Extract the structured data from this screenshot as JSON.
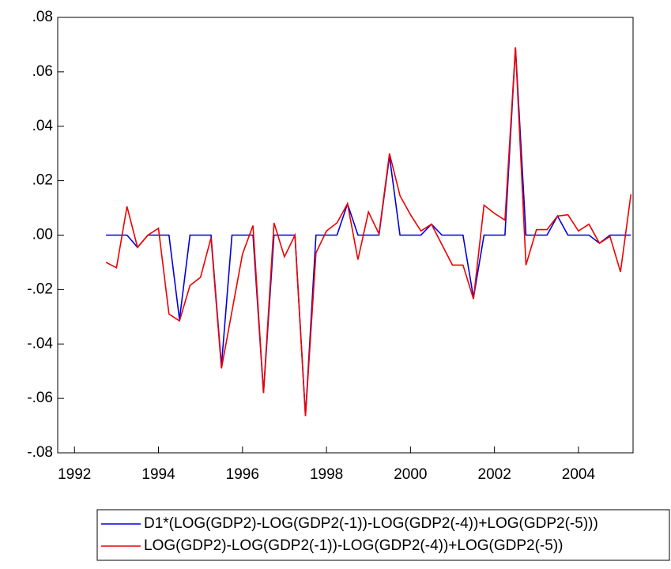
{
  "chart_data": {
    "type": "line",
    "x": [
      1992.75,
      1993,
      1993.25,
      1993.5,
      1993.75,
      1994,
      1994.25,
      1994.5,
      1994.75,
      1995,
      1995.25,
      1995.5,
      1995.75,
      1996,
      1996.25,
      1996.5,
      1996.75,
      1997,
      1997.25,
      1997.5,
      1997.75,
      1998,
      1998.25,
      1998.5,
      1998.75,
      1999,
      1999.25,
      1999.5,
      1999.75,
      2000,
      2000.25,
      2000.5,
      2000.75,
      2001,
      2001.25,
      2001.5,
      2001.75,
      2002,
      2002.25,
      2002.5,
      2002.75,
      2003,
      2003.25,
      2003.5,
      2003.75,
      2004,
      2004.25,
      2004.5,
      2004.75,
      2005,
      2005.25
    ],
    "series": [
      {
        "name": "D1*(LOG(GDP2)-LOG(GDP2(-1))-LOG(GDP2(-4))+LOG(GDP2(-5)))",
        "color": "#0000dd",
        "values": [
          0,
          0,
          0,
          -0.0045,
          0,
          0,
          0,
          -0.031,
          0,
          0,
          0,
          -0.048,
          0,
          0,
          0,
          -0.058,
          0,
          0,
          0,
          -0.0665,
          0,
          0,
          0,
          0.0115,
          0,
          0,
          0,
          0.029,
          0,
          0,
          0,
          0.004,
          0,
          0,
          0,
          -0.023,
          0,
          0,
          0,
          0.069,
          0,
          0,
          0,
          0.007,
          0,
          0,
          0,
          -0.003,
          0,
          0,
          0
        ]
      },
      {
        "name": "LOG(GDP2)-LOG(GDP2(-1))-LOG(GDP2(-4))+LOG(GDP2(-5))",
        "color": "#ee0000",
        "values": [
          -0.01,
          -0.012,
          0.0105,
          -0.0045,
          0,
          0.0025,
          -0.029,
          -0.0315,
          -0.0185,
          -0.0155,
          -0.001,
          -0.049,
          -0.028,
          -0.007,
          0.0035,
          -0.058,
          0.0045,
          -0.008,
          0,
          -0.0665,
          -0.0065,
          0.0015,
          0.0045,
          0.0115,
          -0.009,
          0.0085,
          0.0005,
          0.03,
          0.0145,
          0.0075,
          0.0015,
          0.004,
          -0.0035,
          -0.011,
          -0.011,
          -0.0235,
          0.011,
          0.008,
          0.0055,
          0.069,
          -0.011,
          0.002,
          0.002,
          0.007,
          0.0075,
          0.0015,
          0.004,
          -0.003,
          -0.0005,
          -0.0135,
          0.015
        ]
      }
    ],
    "xlim": [
      1991.6,
      2005.3
    ],
    "xticks": [
      1992,
      1994,
      1996,
      1998,
      2000,
      2002,
      2004
    ],
    "ylim": [
      -0.08,
      0.08
    ],
    "yticks": [
      {
        "value": -0.08,
        "label": "-.08"
      },
      {
        "value": -0.06,
        "label": "-.06"
      },
      {
        "value": -0.04,
        "label": "-.04"
      },
      {
        "value": -0.02,
        "label": "-.02"
      },
      {
        "value": 0,
        "label": ".00"
      },
      {
        "value": 0.02,
        "label": ".02"
      },
      {
        "value": 0.04,
        "label": ".04"
      },
      {
        "value": 0.06,
        "label": ".06"
      },
      {
        "value": 0.08,
        "label": ".08"
      }
    ],
    "grid": false
  }
}
